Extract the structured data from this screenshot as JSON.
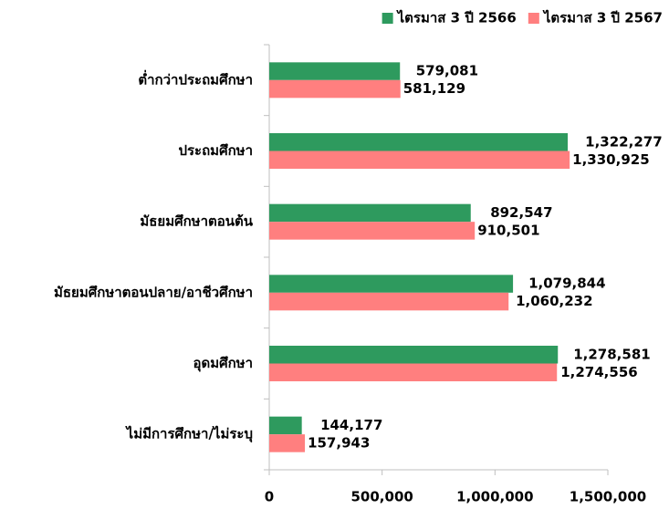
{
  "chart_data": {
    "type": "hbar",
    "categories": [
      "ต่ำกว่าประถมศึกษา",
      "ประถมศึกษา",
      "มัธยมศึกษาตอนต้น",
      "มัธยมศึกษาตอนปลาย/อาชีวศึกษา",
      "อุดมศึกษา",
      "ไม่มีการศึกษา/ไม่ระบุ"
    ],
    "series": [
      {
        "name": "ไตรมาส 3 ปี 2566",
        "color": "#2e9a5e",
        "values": [
          579081,
          1322277,
          892547,
          1079844,
          1278581,
          144177
        ],
        "value_labels": [
          "579,081",
          "1,322,277",
          "892,547",
          "1,079,844",
          "1,278,581",
          "144,177"
        ]
      },
      {
        "name": "ไตรมาส 3 ปี 2567",
        "color": "#ff7f7f",
        "values": [
          581129,
          1330925,
          910501,
          1060232,
          1274556,
          157943
        ],
        "value_labels": [
          "581,129",
          "1,330,925",
          "910,501",
          "1,060,232",
          "1,274,556",
          "157,943"
        ]
      }
    ],
    "xlim": [
      0,
      1500000
    ],
    "xticks": [
      0,
      {
        "value": 500000,
        "label": "500,000"
      },
      {
        "value": 1000000,
        "label": "1,000,000"
      },
      {
        "value": 1500000,
        "label": "1,500,000"
      }
    ],
    "grid": false,
    "legend": "top-right"
  }
}
